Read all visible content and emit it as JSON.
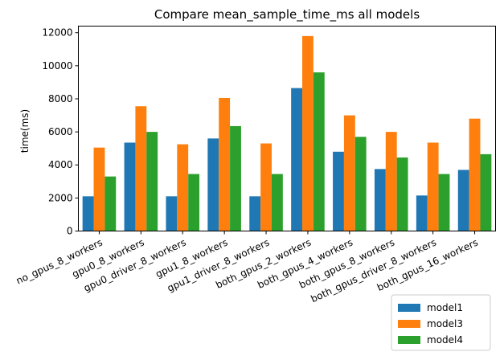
{
  "chart_data": {
    "type": "bar",
    "title": "Compare mean_sample_time_ms all models",
    "xlabel": "",
    "ylabel": "time(ms)",
    "ylim": [
      0,
      12400
    ],
    "yticks": [
      0,
      2000,
      4000,
      6000,
      8000,
      10000,
      12000
    ],
    "ytick_labels": [
      "0",
      "2000",
      "4000",
      "6000",
      "8000",
      "10000",
      "12000"
    ],
    "categories": [
      "no_gpus_8_workers",
      "gpu0_8_workers",
      "gpu0_driver_8_workers",
      "gpu1_8_workers",
      "gpu1_driver_8_workers",
      "both_gpus_2_workers",
      "both_gpus_4_workers",
      "both_gpus_8_workers",
      "both_gpus_driver_8_workers",
      "both_gpus_16_workers"
    ],
    "series": [
      {
        "name": "model1",
        "color": "#1f77b4",
        "values": [
          2100,
          5350,
          2100,
          5600,
          2100,
          8650,
          4800,
          3750,
          2150,
          3700
        ]
      },
      {
        "name": "model3",
        "color": "#ff7f0e",
        "values": [
          5050,
          7550,
          5250,
          8050,
          5300,
          11800,
          7000,
          6000,
          5350,
          6800
        ]
      },
      {
        "name": "model4",
        "color": "#2ca02c",
        "values": [
          3300,
          6000,
          3450,
          6350,
          3450,
          9600,
          5700,
          4450,
          3450,
          4650
        ]
      }
    ],
    "grid": false,
    "legend_position": "bottom-right"
  }
}
